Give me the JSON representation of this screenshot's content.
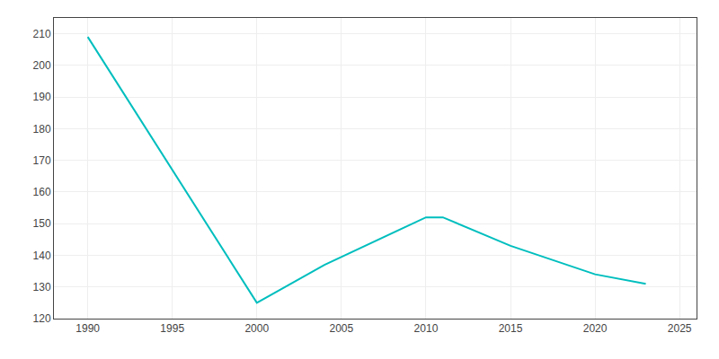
{
  "chart_data": {
    "type": "line",
    "x": [
      1990,
      2000,
      2004,
      2010,
      2011,
      2015,
      2020,
      2021,
      2022,
      2023
    ],
    "values": [
      209,
      125,
      137,
      152,
      152,
      143,
      134,
      133,
      132,
      131
    ],
    "color": "#00BEBE",
    "xlim": [
      1988,
      2026
    ],
    "ylim": [
      120,
      215
    ],
    "xticks": [
      1990,
      1995,
      2000,
      2005,
      2010,
      2015,
      2020,
      2025
    ],
    "yticks": [
      120,
      130,
      140,
      150,
      160,
      170,
      180,
      190,
      200,
      210
    ],
    "grid": true
  }
}
